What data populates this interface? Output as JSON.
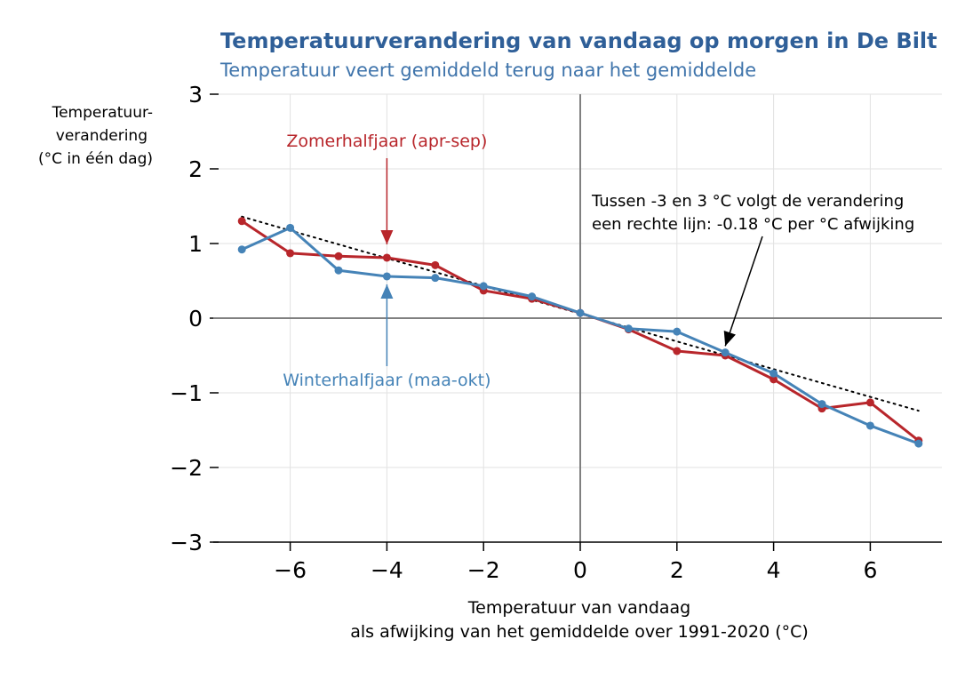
{
  "chart_data": {
    "type": "line",
    "title": "Temperatuurverandering van vandaag op morgen in De Bilt",
    "subtitle": "Temperatuur veert gemiddeld terug naar het gemiddelde",
    "ylabel_lines": [
      "Temperatuur-",
      "verandering",
      "(°C in één dag)"
    ],
    "xlabel_lines": [
      "Temperatuur van vandaag",
      "als afwijking van het gemiddelde over 1991-2020 (°C)"
    ],
    "xlim": [
      -7.6,
      7.5
    ],
    "ylim": [
      -3,
      3
    ],
    "xticks": [
      -6,
      -4,
      -2,
      0,
      2,
      4,
      6
    ],
    "xtick_labels": [
      "−6",
      "−4",
      "−2",
      "0",
      "2",
      "4",
      "6"
    ],
    "yticks": [
      3,
      2,
      1,
      0,
      -1,
      -2,
      -3
    ],
    "ytick_labels": [
      "3",
      "2",
      "1",
      "0",
      "−1",
      "−2",
      "−3"
    ],
    "grid": true,
    "x": [
      -7,
      -6,
      -5,
      -4,
      -3,
      -2,
      -1,
      0,
      1,
      2,
      3,
      4,
      5,
      6,
      7
    ],
    "series": [
      {
        "name": "Zomerhalfjaar (apr-sep)",
        "color": "#b8262b",
        "values": [
          1.3,
          0.87,
          0.83,
          0.81,
          0.71,
          0.37,
          0.26,
          0.07,
          -0.15,
          -0.44,
          -0.5,
          -0.82,
          -1.21,
          -1.13,
          -1.64
        ]
      },
      {
        "name": "Winterhalfjaar (maa-okt)",
        "color": "#4583b7",
        "values": [
          0.92,
          1.21,
          0.64,
          0.56,
          0.54,
          0.43,
          0.29,
          0.07,
          -0.14,
          -0.18,
          -0.46,
          -0.74,
          -1.15,
          -1.44,
          -1.68
        ]
      }
    ],
    "trend": {
      "x": [
        -7,
        7
      ],
      "y": [
        1.36,
        -1.24
      ],
      "style": "dotted",
      "color": "#000000"
    },
    "annotations": [
      {
        "lines": [
          "Tussen -3 en 3 °C volgt de verandering",
          "een rechte lijn: -0.18 °C per °C afwijking"
        ],
        "color": "#000000",
        "arrow_to": [
          3,
          -0.35
        ]
      },
      {
        "lines": [
          "Zomerhalfjaar (apr-sep)"
        ],
        "color": "#b8262b",
        "arrow_to": [
          -4,
          0.97
        ]
      },
      {
        "lines": [
          "Winterhalfjaar (maa-okt)"
        ],
        "color": "#4583b7",
        "arrow_to": [
          -4,
          0.45
        ]
      }
    ],
    "title_color": "#2f5f98",
    "subtitle_color": "#3f74ab"
  }
}
